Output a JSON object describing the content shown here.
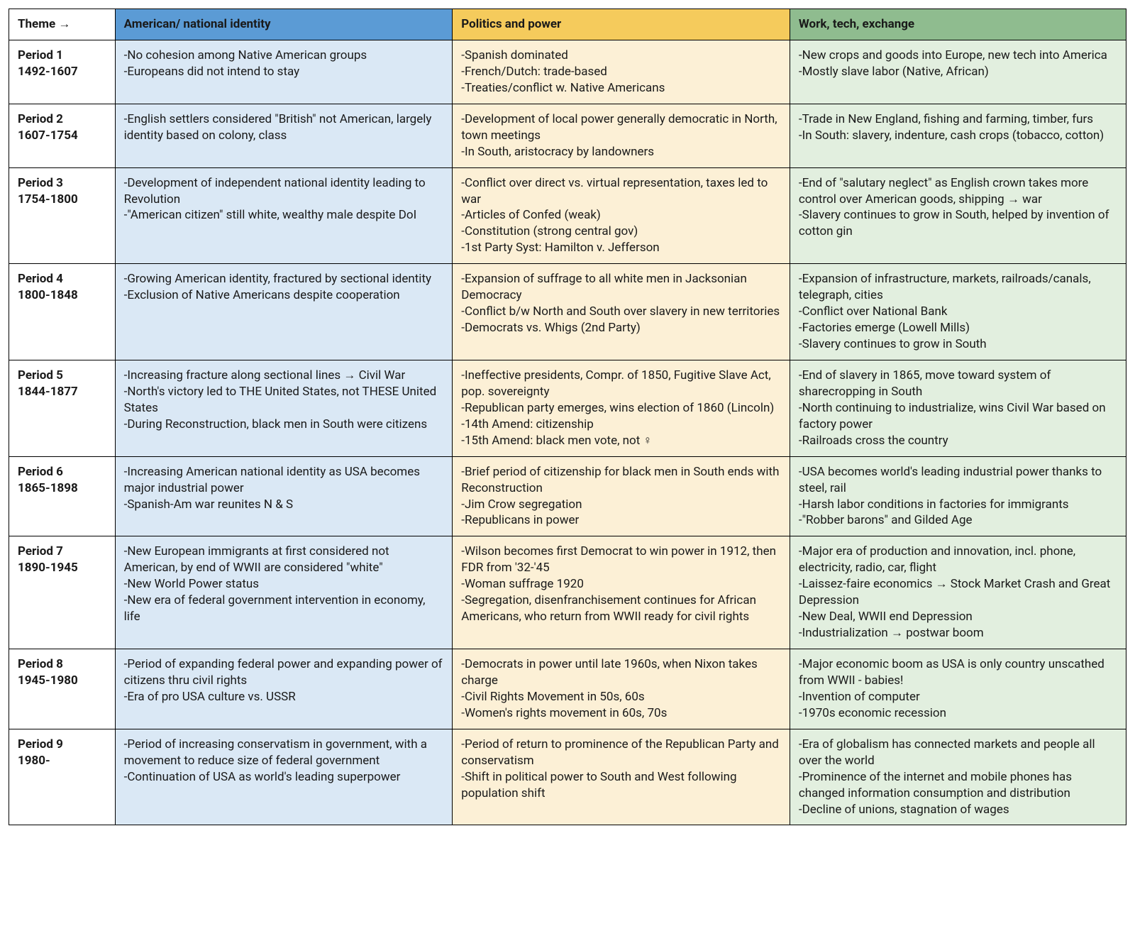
{
  "colors": {
    "header_blue": "#5b9bd5",
    "header_yellow": "#f5cb5c",
    "header_green": "#8fbc8f",
    "cell_blue": "#dae8f5",
    "cell_yellow": "#fcf0d6",
    "cell_green": "#e2efdf",
    "border": "#000000",
    "text": "#1a1a1a"
  },
  "typography": {
    "font_family": "-apple-system, Segoe UI, Helvetica, Arial, sans-serif",
    "cell_fontsize_pt": 13,
    "header_fontweight": 700
  },
  "layout": {
    "col_widths_pct": [
      9.5,
      30.2,
      30.2,
      30.1
    ]
  },
  "header": {
    "theme_label": "Theme →",
    "columns": [
      "American/ national identity",
      "Politics and power",
      "Work, tech, exchange"
    ]
  },
  "rows": [
    {
      "label_lines": [
        "Period 1",
        "1492-1607"
      ],
      "cells": [
        [
          "-No cohesion among Native American groups",
          "-Europeans did not intend to stay"
        ],
        [
          "-Spanish dominated",
          "-French/Dutch: trade-based",
          "-Treaties/conflict w. Native Americans"
        ],
        [
          "-New crops and goods into Europe, new tech into America",
          "-Mostly slave labor (Native, African)"
        ]
      ]
    },
    {
      "label_lines": [
        "Period 2",
        "1607-1754"
      ],
      "cells": [
        [
          "-English settlers considered \"British\" not American, largely identity based on colony, class"
        ],
        [
          "-Development of local power generally democratic in North, town meetings",
          "-In South, aristocracy by landowners"
        ],
        [
          "-Trade in New England, fishing and farming, timber, furs",
          "-In South: slavery, indenture, cash crops (tobacco, cotton)"
        ]
      ]
    },
    {
      "label_lines": [
        "Period 3",
        "1754-1800"
      ],
      "cells": [
        [
          "-Development of independent national identity leading to Revolution",
          "-\"American citizen\" still white, wealthy male despite DoI"
        ],
        [
          "-Conflict over direct vs. virtual representation, taxes led to war",
          "-Articles of Confed (weak)",
          "-Constitution (strong central gov)",
          "-1st Party Syst: Hamilton v. Jefferson"
        ],
        [
          "-End of \"salutary neglect\" as English crown takes more control over American goods, shipping → war",
          "-Slavery continues to grow in South, helped by invention of cotton gin"
        ]
      ]
    },
    {
      "label_lines": [
        "Period 4",
        "1800-1848"
      ],
      "cells": [
        [
          "-Growing American identity, fractured by sectional identity",
          "-Exclusion of Native Americans despite cooperation"
        ],
        [
          "-Expansion of suffrage to all white men in Jacksonian Democracy",
          "-Conflict b/w North and South over slavery in new territories",
          "-Democrats vs. Whigs (2nd Party)"
        ],
        [
          "-Expansion of infrastructure, markets, railroads/canals, telegraph, cities",
          "-Conflict over National Bank",
          "-Factories emerge (Lowell Mills)",
          "-Slavery continues to grow in South"
        ]
      ]
    },
    {
      "label_lines": [
        "Period 5",
        "1844-1877"
      ],
      "cells": [
        [
          "-Increasing fracture along sectional lines → Civil War",
          "-North's victory led to THE United States, not THESE United States",
          "-During Reconstruction, black men in South were citizens"
        ],
        [
          "-Ineffective presidents, Compr. of 1850, Fugitive Slave Act, pop. sovereignty",
          "-Republican party emerges, wins election of 1860 (Lincoln)",
          "-14th Amend: citizenship",
          "-15th Amend: black men vote, not ♀"
        ],
        [
          "-End of slavery in 1865, move toward system of sharecropping in South",
          "-North continuing to industrialize, wins Civil War based on factory power",
          "-Railroads cross the country"
        ]
      ]
    },
    {
      "label_lines": [
        "Period 6",
        "1865-1898"
      ],
      "cells": [
        [
          "-Increasing American national identity as USA becomes major industrial power",
          "-Spanish-Am war reunites N & S"
        ],
        [
          "-Brief period of citizenship for black men in South ends with Reconstruction",
          "-Jim Crow segregation",
          "-Republicans in power"
        ],
        [
          "-USA becomes world's leading industrial power thanks to steel, rail",
          "-Harsh labor conditions in factories for immigrants",
          "-\"Robber barons\" and Gilded Age"
        ]
      ]
    },
    {
      "label_lines": [
        "Period 7",
        "1890-1945"
      ],
      "cells": [
        [
          "-New European immigrants at first considered not American, by end of WWII are considered \"white\"",
          "-New World Power status",
          "-New era of federal government intervention in economy, life"
        ],
        [
          "-Wilson becomes first Democrat to win power in 1912, then FDR from '32-'45",
          "-Woman suffrage 1920",
          "-Segregation, disenfranchisement continues for African Americans, who return from WWII ready for civil rights"
        ],
        [
          "-Major era of production and innovation, incl. phone, electricity, radio, car, flight",
          "-Laissez-faire economics → Stock Market Crash and Great Depression",
          "-New Deal, WWII end Depression",
          "-Industrialization → postwar boom"
        ]
      ]
    },
    {
      "label_lines": [
        "Period 8",
        "1945-1980"
      ],
      "cells": [
        [
          "-Period of expanding federal power and expanding power of citizens thru civil rights",
          "-Era of pro USA culture vs. USSR"
        ],
        [
          "-Democrats in power until late 1960s, when Nixon takes charge",
          "-Civil Rights Movement in 50s, 60s",
          "-Women's rights movement in 60s, 70s"
        ],
        [
          "-Major economic boom as USA is only country unscathed from WWII - babies!",
          "-Invention of computer",
          "-1970s economic recession"
        ]
      ]
    },
    {
      "label_lines": [
        "Period 9",
        "1980-"
      ],
      "cells": [
        [
          "-Period of increasing conservatism in government, with a movement to reduce size of federal government",
          "-Continuation of USA as world's leading superpower"
        ],
        [
          "-Period of return to prominence of the Republican Party and conservatism",
          "-Shift in political power to South and West following population shift"
        ],
        [
          "-Era of globalism has connected markets and people all over the world",
          "-Prominence of the internet and mobile phones has changed information consumption and distribution",
          "-Decline of unions, stagnation of wages"
        ]
      ]
    }
  ]
}
